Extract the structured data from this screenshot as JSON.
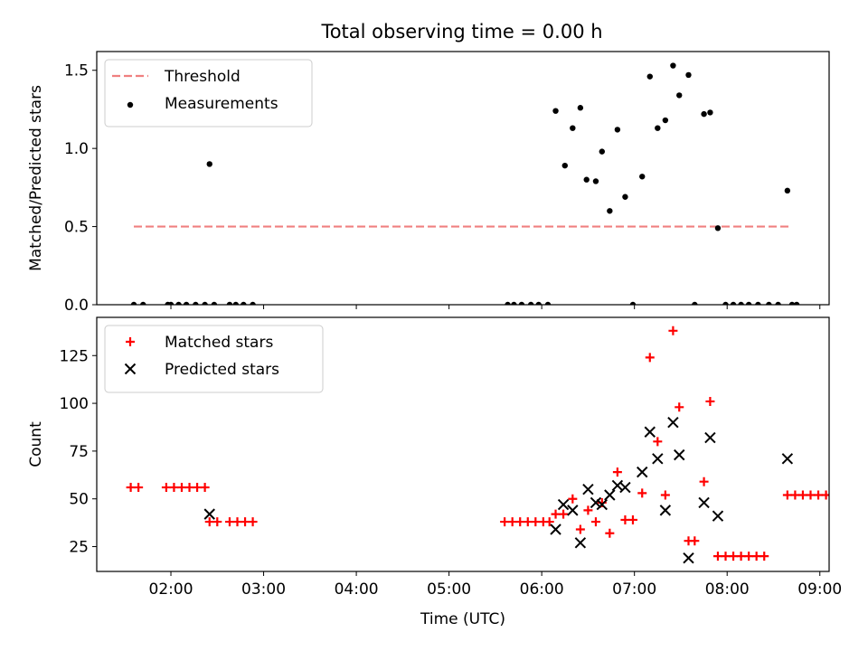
{
  "title": "Total observing time = 0.00 h",
  "chart_data": [
    {
      "type": "scatter",
      "panel": "top",
      "ylabel": "Matched/Predicted stars",
      "ylim": [
        0,
        1.62
      ],
      "yticks": [
        0.0,
        0.5,
        1.0,
        1.5
      ],
      "ytick_labels": [
        "0.0",
        "0.5",
        "1.0",
        "1.5"
      ],
      "xlim": [
        "01:12",
        "09:06"
      ],
      "xticks": [
        "02:00",
        "03:00",
        "04:00",
        "05:00",
        "06:00",
        "07:00",
        "08:00",
        "09:00"
      ],
      "legend_position": "top-left",
      "threshold": {
        "name": "Threshold",
        "value": 0.5,
        "x_start": "01:36",
        "x_end": "08:42",
        "color": "#f08080"
      },
      "series": [
        {
          "name": "Measurements",
          "color": "#000000",
          "points": [
            [
              "01:36",
              0.0
            ],
            [
              "01:42",
              0.0
            ],
            [
              "01:58",
              0.0
            ],
            [
              "02:00",
              0.0
            ],
            [
              "02:05",
              0.0
            ],
            [
              "02:10",
              0.0
            ],
            [
              "02:16",
              0.0
            ],
            [
              "02:22",
              0.0
            ],
            [
              "02:25",
              0.9
            ],
            [
              "02:28",
              0.0
            ],
            [
              "02:38",
              0.0
            ],
            [
              "02:42",
              0.0
            ],
            [
              "02:47",
              0.0
            ],
            [
              "02:53",
              0.0
            ],
            [
              "05:38",
              0.0
            ],
            [
              "05:42",
              0.0
            ],
            [
              "05:47",
              0.0
            ],
            [
              "05:53",
              0.0
            ],
            [
              "05:58",
              0.0
            ],
            [
              "06:04",
              0.0
            ],
            [
              "06:09",
              1.24
            ],
            [
              "06:15",
              0.89
            ],
            [
              "06:20",
              1.13
            ],
            [
              "06:25",
              1.26
            ],
            [
              "06:29",
              0.8
            ],
            [
              "06:35",
              0.79
            ],
            [
              "06:39",
              0.98
            ],
            [
              "06:44",
              0.6
            ],
            [
              "06:49",
              1.12
            ],
            [
              "06:54",
              0.69
            ],
            [
              "06:59",
              0.0
            ],
            [
              "07:05",
              0.82
            ],
            [
              "07:10",
              1.46
            ],
            [
              "07:15",
              1.13
            ],
            [
              "07:20",
              1.18
            ],
            [
              "07:25",
              1.53
            ],
            [
              "07:29",
              1.34
            ],
            [
              "07:35",
              1.47
            ],
            [
              "07:39",
              0.0
            ],
            [
              "07:45",
              1.22
            ],
            [
              "07:49",
              1.23
            ],
            [
              "07:54",
              0.49
            ],
            [
              "07:59",
              0.0
            ],
            [
              "08:04",
              0.0
            ],
            [
              "08:09",
              0.0
            ],
            [
              "08:14",
              0.0
            ],
            [
              "08:20",
              0.0
            ],
            [
              "08:27",
              0.0
            ],
            [
              "08:33",
              0.0
            ],
            [
              "08:39",
              0.73
            ],
            [
              "08:42",
              0.0
            ],
            [
              "08:45",
              0.0
            ]
          ]
        }
      ]
    },
    {
      "type": "scatter",
      "panel": "bottom",
      "xlabel": "Time (UTC)",
      "ylabel": "Count",
      "ylim": [
        12,
        145
      ],
      "yticks": [
        25,
        50,
        75,
        100,
        125
      ],
      "ytick_labels": [
        "25",
        "50",
        "75",
        "100",
        "125"
      ],
      "xlim": [
        "01:12",
        "09:06"
      ],
      "xticks": [
        "02:00",
        "03:00",
        "04:00",
        "05:00",
        "06:00",
        "07:00",
        "08:00",
        "09:00"
      ],
      "xtick_labels": [
        "02:00",
        "03:00",
        "04:00",
        "05:00",
        "06:00",
        "07:00",
        "08:00",
        "09:00"
      ],
      "legend_position": "top-left",
      "series": [
        {
          "name": "Matched stars",
          "color": "#ff0000",
          "marker": "plus",
          "points": [
            [
              "01:34",
              56
            ],
            [
              "01:39",
              56
            ],
            [
              "01:57",
              56
            ],
            [
              "02:02",
              56
            ],
            [
              "02:07",
              56
            ],
            [
              "02:12",
              56
            ],
            [
              "02:17",
              56
            ],
            [
              "02:22",
              56
            ],
            [
              "02:25",
              38
            ],
            [
              "02:30",
              38
            ],
            [
              "02:38",
              38
            ],
            [
              "02:43",
              38
            ],
            [
              "02:48",
              38
            ],
            [
              "02:53",
              38
            ],
            [
              "05:36",
              38
            ],
            [
              "05:41",
              38
            ],
            [
              "05:46",
              38
            ],
            [
              "05:51",
              38
            ],
            [
              "05:56",
              38
            ],
            [
              "06:01",
              38
            ],
            [
              "06:05",
              38
            ],
            [
              "06:09",
              42
            ],
            [
              "06:14",
              42
            ],
            [
              "06:20",
              50
            ],
            [
              "06:25",
              34
            ],
            [
              "06:30",
              44
            ],
            [
              "06:35",
              38
            ],
            [
              "06:39",
              48
            ],
            [
              "06:44",
              32
            ],
            [
              "06:49",
              64
            ],
            [
              "06:54",
              39
            ],
            [
              "06:59",
              39
            ],
            [
              "07:05",
              53
            ],
            [
              "07:10",
              124
            ],
            [
              "07:15",
              80
            ],
            [
              "07:20",
              52
            ],
            [
              "07:25",
              138
            ],
            [
              "07:29",
              98
            ],
            [
              "07:35",
              28
            ],
            [
              "07:39",
              28
            ],
            [
              "07:45",
              59
            ],
            [
              "07:49",
              101
            ],
            [
              "07:54",
              20
            ],
            [
              "07:59",
              20
            ],
            [
              "08:04",
              20
            ],
            [
              "08:09",
              20
            ],
            [
              "08:14",
              20
            ],
            [
              "08:19",
              20
            ],
            [
              "08:24",
              20
            ],
            [
              "08:39",
              52
            ],
            [
              "08:44",
              52
            ],
            [
              "08:49",
              52
            ],
            [
              "08:54",
              52
            ],
            [
              "08:59",
              52
            ],
            [
              "09:04",
              52
            ],
            [
              "09:09",
              52
            ]
          ]
        },
        {
          "name": "Predicted stars",
          "color": "#000000",
          "marker": "x",
          "points": [
            [
              "02:25",
              42
            ],
            [
              "06:09",
              34
            ],
            [
              "06:14",
              47
            ],
            [
              "06:20",
              44
            ],
            [
              "06:25",
              27
            ],
            [
              "06:30",
              55
            ],
            [
              "06:35",
              48
            ],
            [
              "06:39",
              47
            ],
            [
              "06:44",
              52
            ],
            [
              "06:49",
              57
            ],
            [
              "06:54",
              56
            ],
            [
              "07:05",
              64
            ],
            [
              "07:10",
              85
            ],
            [
              "07:15",
              71
            ],
            [
              "07:20",
              44
            ],
            [
              "07:25",
              90
            ],
            [
              "07:29",
              73
            ],
            [
              "07:35",
              19
            ],
            [
              "07:45",
              48
            ],
            [
              "07:49",
              82
            ],
            [
              "07:54",
              41
            ],
            [
              "08:39",
              71
            ]
          ]
        }
      ]
    }
  ]
}
